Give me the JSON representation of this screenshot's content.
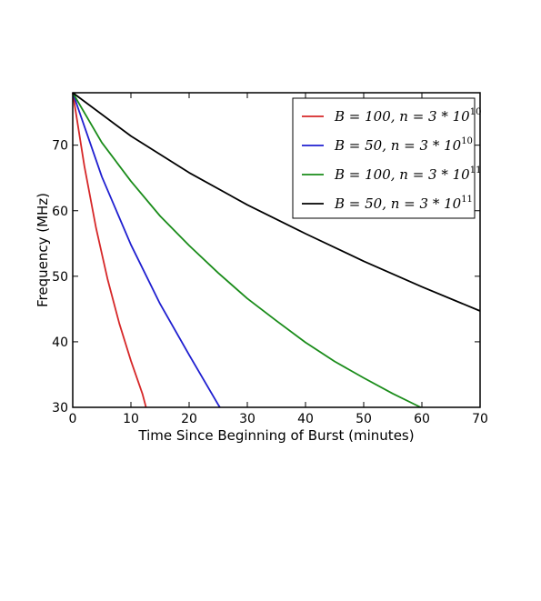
{
  "chart_data": {
    "type": "line",
    "title": "",
    "xlabel": "Time Since Beginning of Burst (minutes)",
    "ylabel": "Frequency (MHz)",
    "xlim": [
      0,
      70
    ],
    "ylim": [
      30,
      78
    ],
    "xticks": [
      0,
      10,
      20,
      30,
      40,
      50,
      60,
      70
    ],
    "yticks": [
      30,
      40,
      50,
      60,
      70
    ],
    "grid": false,
    "legend_position": "top-right",
    "series": [
      {
        "name": "B=100,n=3*10^10",
        "label_main": "B = 100, n = 3 * 10",
        "label_exp": "10",
        "color": "#d62728",
        "x": [
          0,
          2,
          4,
          6,
          8,
          10,
          12,
          12.6
        ],
        "y": [
          78,
          66.8,
          57.4,
          49.5,
          42.8,
          37.1,
          32,
          30
        ]
      },
      {
        "name": "B=50,n=3*10^10",
        "label_main": "B = 50, n = 3 * 10",
        "label_exp": "10",
        "color": "#1f1fd0",
        "x": [
          0,
          5,
          10,
          15,
          20,
          25,
          25.3
        ],
        "y": [
          78,
          65.2,
          54.8,
          45.8,
          38,
          30.4,
          30
        ]
      },
      {
        "name": "B=100,n=3*10^11",
        "label_main": "B = 100, n = 3 * 10",
        "label_exp": "11",
        "color": "#1a8c1a",
        "x": [
          0,
          5,
          10,
          15,
          20,
          25,
          30,
          35,
          40,
          45,
          50,
          55,
          59.8
        ],
        "y": [
          78,
          70.4,
          64.5,
          59.2,
          54.7,
          50.5,
          46.6,
          43.2,
          39.9,
          37,
          34.5,
          32.1,
          30
        ]
      },
      {
        "name": "B=50,n=3*10^11",
        "label_main": "B = 50, n = 3 * 10",
        "label_exp": "11",
        "color": "#000000",
        "x": [
          0,
          10,
          20,
          30,
          40,
          50,
          60,
          70
        ],
        "y": [
          78,
          71.4,
          65.8,
          60.9,
          56.5,
          52.3,
          48.4,
          44.7
        ]
      }
    ]
  }
}
